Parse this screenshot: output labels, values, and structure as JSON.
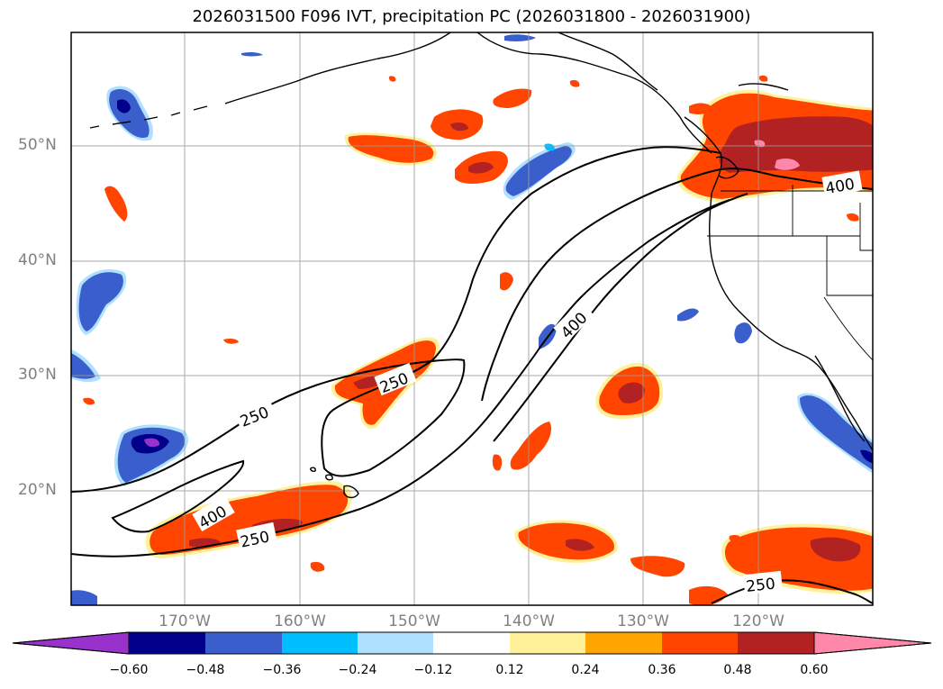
{
  "figure": {
    "title": "2026031500 F096 IVT, precipitation PC (2026031800 - 2026031900)"
  },
  "axes": {
    "lat_labels": [
      "50°N",
      "40°N",
      "30°N",
      "20°N"
    ],
    "lon_labels": [
      "170°W",
      "160°W",
      "150°W",
      "140°W",
      "130°W",
      "120°W"
    ]
  },
  "contours": {
    "labels": [
      "250",
      "250",
      "250",
      "400",
      "400",
      "400",
      "250"
    ]
  },
  "colorbar": {
    "ticks": [
      "−0.60",
      "−0.48",
      "−0.36",
      "−0.24",
      "−0.12",
      "0.12",
      "0.24",
      "0.36",
      "0.48",
      "0.60"
    ],
    "colors": [
      "#9932cc",
      "#00008b",
      "#3a5fcd",
      "#00bfff",
      "#b0e0ff",
      "#ffffff",
      "#fff09a",
      "#ffa500",
      "#ff4500",
      "#b22222",
      "#ff88aa"
    ]
  },
  "map_colors": {
    "neg_light": "#b0e0ff",
    "neg_mid": "#00bfff",
    "neg_blue": "#3a5fcd",
    "neg_dark": "#00008b",
    "neg_purple": "#9932cc",
    "pos_yellow": "#fff09a",
    "pos_orange": "#ffa500",
    "pos_red": "#ff4500",
    "pos_dark": "#b22222",
    "pos_pink": "#ff88aa"
  }
}
